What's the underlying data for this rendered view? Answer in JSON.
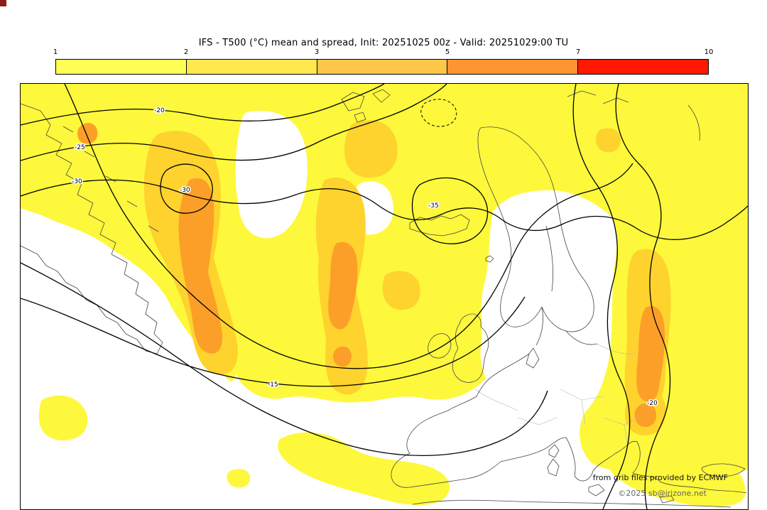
{
  "title": "IFS - T500 (°C) mean and spread, Init: 20251025 00z - Valid: 20251029:00 TU",
  "colorbar": {
    "tick_labels": [
      "1",
      "2",
      "3",
      "5",
      "7",
      "10"
    ],
    "segment_colors": [
      "#ffff55",
      "#ffe84e",
      "#ffc648",
      "#ff9530",
      "#ff1900"
    ]
  },
  "map": {
    "contour_labels": [
      "-20",
      "-25",
      "-30",
      "-35",
      "-30",
      "-15",
      "-20"
    ],
    "spread_colors": {
      "low": "#fdf83b",
      "mid": "#fed32e",
      "high": "#fc9f28"
    },
    "coastline_color": "#444444",
    "country_border_color": "#b5b5b5",
    "contour_color": "#000000"
  },
  "credits": {
    "source_note": "from grib files provided by ECMWF",
    "copyright_note": "©2025 sb@irizone.net"
  },
  "corner_mark_color": "#8b1d15",
  "chart_data": {
    "type": "heatmap",
    "title": "IFS - T500 (°C) mean and spread, Init: 20251025 00z - Valid: 20251029:00 TU",
    "model": "IFS",
    "variable": "T500 (°C)",
    "statistics": [
      "mean (black contours)",
      "spread (color shading)"
    ],
    "init": "20251025 00z",
    "valid": "20251029:00 TU",
    "legend": {
      "position": "top",
      "levels": [
        1,
        2,
        3,
        5,
        7,
        10
      ],
      "colors": [
        "#ffff55",
        "#ffe84e",
        "#ffc648",
        "#ff9530",
        "#ff1900"
      ]
    },
    "contour_values_visible": [
      -35,
      -30,
      -25,
      -20,
      -15
    ],
    "credits": [
      "from grib files provided by ECMWF",
      "©2025 sb@irizone.net"
    ]
  }
}
